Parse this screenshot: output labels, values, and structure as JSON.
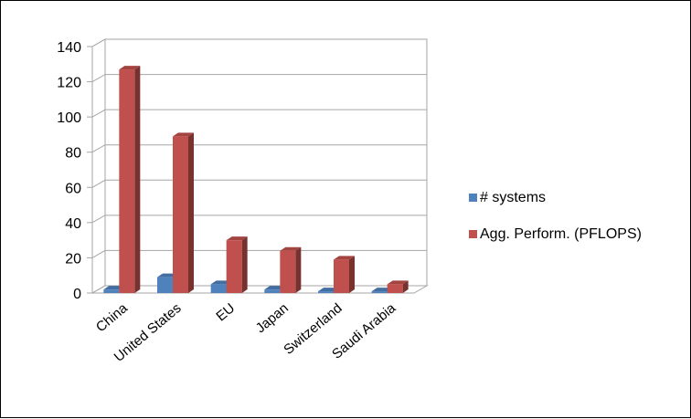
{
  "chart_data": {
    "type": "bar",
    "title": "",
    "xlabel": "",
    "ylabel": "",
    "categories": [
      "China",
      "United States",
      "EU",
      "Japan",
      "Switzerland",
      "Saudi Arabia"
    ],
    "series": [
      {
        "name": "# systems",
        "values": [
          2,
          9,
          5,
          2,
          1,
          1
        ],
        "color": "#4f81bd"
      },
      {
        "name": "Agg. Perform. (PFLOPS)",
        "values": [
          127,
          89,
          30,
          24,
          19,
          5
        ],
        "color": "#c0504d"
      }
    ],
    "ylim": [
      0,
      140
    ],
    "yticks": [
      0,
      20,
      40,
      60,
      80,
      100,
      120,
      140
    ],
    "grid": true,
    "legend_position": "right",
    "style": "3d-clustered-column"
  }
}
